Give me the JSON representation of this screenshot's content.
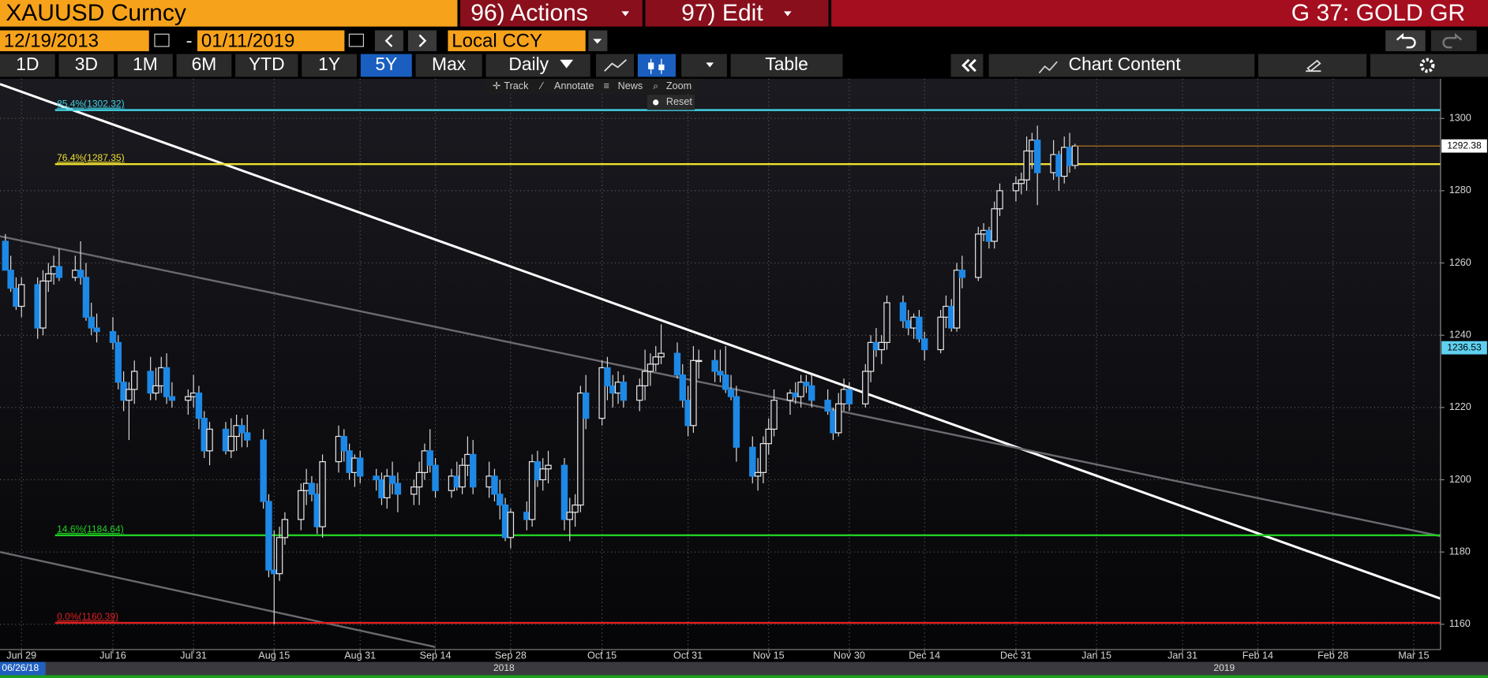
{
  "ui": {
    "security": "XAUUSD Curncy",
    "actions": "96) Actions",
    "edit": "97) Edit",
    "function": "G 37: GOLD GR",
    "start_date": "12/19/2013",
    "end_date": "01/11/2019",
    "currency": "Local CCY",
    "periods": [
      "1D",
      "3D",
      "1M",
      "6M",
      "YTD",
      "1Y",
      "5Y",
      "Max"
    ],
    "frequency": "Daily",
    "table": "Table",
    "chart_content": "Chart Content",
    "tools": [
      "Track",
      "Annotate",
      "News",
      "Zoom"
    ],
    "reset": "Reset",
    "timeline": {
      "start": "06/26/18",
      "years": [
        "2018",
        "2019"
      ]
    }
  },
  "chart_data": {
    "type": "candlestick",
    "up_color": "#e8e8e8",
    "down_color": "#1e88e5",
    "x": [
      "2018-06-26",
      "2018-06-27",
      "2018-06-28",
      "2018-06-29",
      "2018-07-02",
      "2018-07-03",
      "2018-07-04",
      "2018-07-05",
      "2018-07-06",
      "2018-07-09",
      "2018-07-10",
      "2018-07-11",
      "2018-07-12",
      "2018-07-13",
      "2018-07-16",
      "2018-07-17",
      "2018-07-18",
      "2018-07-19",
      "2018-07-20",
      "2018-07-23",
      "2018-07-24",
      "2018-07-25",
      "2018-07-26",
      "2018-07-27",
      "2018-07-30",
      "2018-07-31",
      "2018-08-01",
      "2018-08-02",
      "2018-08-03",
      "2018-08-06",
      "2018-08-07",
      "2018-08-08",
      "2018-08-09",
      "2018-08-10",
      "2018-08-13",
      "2018-08-14",
      "2018-08-15",
      "2018-08-16",
      "2018-08-17",
      "2018-08-20",
      "2018-08-21",
      "2018-08-22",
      "2018-08-23",
      "2018-08-24",
      "2018-08-27",
      "2018-08-28",
      "2018-08-29",
      "2018-08-30",
      "2018-08-31",
      "2018-09-03",
      "2018-09-04",
      "2018-09-05",
      "2018-09-06",
      "2018-09-07",
      "2018-09-10",
      "2018-09-11",
      "2018-09-12",
      "2018-09-13",
      "2018-09-14",
      "2018-09-17",
      "2018-09-18",
      "2018-09-19",
      "2018-09-20",
      "2018-09-21",
      "2018-09-24",
      "2018-09-25",
      "2018-09-26",
      "2018-09-27",
      "2018-09-28",
      "2018-10-01",
      "2018-10-02",
      "2018-10-03",
      "2018-10-04",
      "2018-10-05",
      "2018-10-08",
      "2018-10-09",
      "2018-10-10",
      "2018-10-11",
      "2018-10-12",
      "2018-10-15",
      "2018-10-16",
      "2018-10-17",
      "2018-10-18",
      "2018-10-19",
      "2018-10-22",
      "2018-10-23",
      "2018-10-24",
      "2018-10-25",
      "2018-10-26",
      "2018-10-29",
      "2018-10-30",
      "2018-10-31",
      "2018-11-01",
      "2018-11-02",
      "2018-11-05",
      "2018-11-06",
      "2018-11-07",
      "2018-11-08",
      "2018-11-09",
      "2018-11-12",
      "2018-11-13",
      "2018-11-14",
      "2018-11-15",
      "2018-11-16",
      "2018-11-19",
      "2018-11-20",
      "2018-11-21",
      "2018-11-22",
      "2018-11-23",
      "2018-11-26",
      "2018-11-27",
      "2018-11-28",
      "2018-11-29",
      "2018-11-30",
      "2018-12-03",
      "2018-12-04",
      "2018-12-05",
      "2018-12-06",
      "2018-12-07",
      "2018-12-10",
      "2018-12-11",
      "2018-12-12",
      "2018-12-13",
      "2018-12-14",
      "2018-12-17",
      "2018-12-18",
      "2018-12-19",
      "2018-12-20",
      "2018-12-21",
      "2018-12-24",
      "2018-12-25",
      "2018-12-26",
      "2018-12-27",
      "2018-12-28",
      "2018-12-31",
      "2019-01-01",
      "2019-01-02",
      "2019-01-03",
      "2019-01-04",
      "2019-01-07",
      "2019-01-08",
      "2019-01-09",
      "2019-01-10",
      "2019-01-11"
    ],
    "open": [
      1266,
      1258,
      1253,
      1248,
      1254,
      1242,
      1255,
      1257,
      1259,
      1256,
      1258,
      1256,
      1245,
      1242,
      1241,
      1238,
      1227,
      1222,
      1225,
      1230,
      1224,
      1226,
      1231,
      1223,
      1222,
      1223,
      1224,
      1217,
      1208,
      1214,
      1208,
      1212,
      1215,
      1213,
      1211,
      1194,
      1175,
      1174,
      1184,
      1189,
      1197,
      1199,
      1196,
      1187,
      1205,
      1212,
      1208,
      1202,
      1206,
      1201,
      1200,
      1195,
      1201,
      1199,
      1196,
      1198,
      1202,
      1208,
      1204,
      1197,
      1201,
      1198,
      1204,
      1207,
      1198,
      1201,
      1196,
      1193,
      1184,
      1191,
      1189,
      1205,
      1200,
      1203,
      1204,
      1189,
      1191,
      1193,
      1224,
      1217,
      1231,
      1226,
      1224,
      1227,
      1222,
      1226,
      1230,
      1232,
      1234,
      1235,
      1229,
      1222,
      1215,
      1233,
      1233,
      1230,
      1229,
      1225,
      1223,
      1209,
      1201,
      1202,
      1210,
      1214,
      1222,
      1224,
      1223,
      1227,
      1226,
      1222,
      1219,
      1213,
      1221,
      1225,
      1221,
      1230,
      1238,
      1236,
      1238,
      1249,
      1244,
      1242,
      1245,
      1239,
      1236,
      1245,
      1248,
      1242,
      1258,
      1256,
      1268,
      1269,
      1266,
      1275,
      1280,
      1282,
      1283,
      1291,
      1294,
      1285,
      1290,
      1284,
      1292,
      1287
    ],
    "high": [
      1268,
      1262,
      1256,
      1256,
      1256,
      1258,
      1260,
      1262,
      1264,
      1262,
      1266,
      1260,
      1249,
      1246,
      1245,
      1240,
      1230,
      1227,
      1233,
      1234,
      1231,
      1234,
      1235,
      1227,
      1225,
      1229,
      1226,
      1219,
      1216,
      1216,
      1217,
      1218,
      1217,
      1218,
      1214,
      1196,
      1186,
      1187,
      1191,
      1199,
      1203,
      1201,
      1199,
      1207,
      1215,
      1214,
      1210,
      1207,
      1208,
      1203,
      1202,
      1203,
      1205,
      1202,
      1200,
      1205,
      1210,
      1214,
      1206,
      1203,
      1205,
      1206,
      1212,
      1211,
      1205,
      1203,
      1200,
      1195,
      1192,
      1194,
      1207,
      1208,
      1206,
      1208,
      1206,
      1195,
      1196,
      1226,
      1229,
      1233,
      1234,
      1229,
      1230,
      1229,
      1228,
      1236,
      1235,
      1237,
      1243,
      1238,
      1232,
      1226,
      1237,
      1236,
      1236,
      1236,
      1237,
      1229,
      1226,
      1212,
      1206,
      1212,
      1217,
      1225,
      1225,
      1227,
      1229,
      1229,
      1229,
      1225,
      1220,
      1224,
      1228,
      1227,
      1232,
      1240,
      1242,
      1240,
      1251,
      1251,
      1247,
      1246,
      1247,
      1241,
      1247,
      1251,
      1250,
      1260,
      1262,
      1270,
      1271,
      1270,
      1277,
      1282,
      1284,
      1285,
      1295,
      1296,
      1298,
      1294,
      1291,
      1295,
      1296,
      1293
    ],
    "low": [
      1258,
      1252,
      1247,
      1245,
      1239,
      1240,
      1252,
      1254,
      1255,
      1255,
      1254,
      1244,
      1240,
      1238,
      1236,
      1225,
      1219,
      1211,
      1221,
      1222,
      1222,
      1224,
      1221,
      1220,
      1218,
      1220,
      1214,
      1206,
      1204,
      1207,
      1206,
      1208,
      1209,
      1209,
      1192,
      1173,
      1160,
      1172,
      1182,
      1186,
      1193,
      1194,
      1185,
      1184,
      1202,
      1205,
      1200,
      1198,
      1199,
      1197,
      1193,
      1192,
      1196,
      1191,
      1193,
      1193,
      1200,
      1202,
      1195,
      1195,
      1197,
      1196,
      1201,
      1196,
      1195,
      1194,
      1189,
      1183,
      1181,
      1186,
      1187,
      1198,
      1197,
      1199,
      1186,
      1183,
      1187,
      1191,
      1214,
      1215,
      1222,
      1220,
      1221,
      1220,
      1219,
      1222,
      1226,
      1230,
      1232,
      1228,
      1220,
      1212,
      1213,
      1228,
      1227,
      1227,
      1224,
      1222,
      1205,
      1199,
      1197,
      1199,
      1207,
      1212,
      1218,
      1221,
      1220,
      1224,
      1220,
      1218,
      1211,
      1212,
      1219,
      1219,
      1220,
      1227,
      1234,
      1232,
      1236,
      1242,
      1240,
      1239,
      1238,
      1233,
      1235,
      1242,
      1241,
      1241,
      1253,
      1255,
      1266,
      1264,
      1264,
      1273,
      1277,
      1279,
      1280,
      1286,
      1276,
      1283,
      1280,
      1282,
      1285,
      1286
    ],
    "close": [
      1258,
      1253,
      1248,
      1254,
      1242,
      1255,
      1257,
      1259,
      1256,
      1258,
      1256,
      1245,
      1242,
      1241,
      1238,
      1227,
      1222,
      1225,
      1230,
      1224,
      1226,
      1231,
      1223,
      1222,
      1223,
      1224,
      1217,
      1208,
      1214,
      1208,
      1212,
      1215,
      1213,
      1211,
      1194,
      1175,
      1174,
      1184,
      1189,
      1197,
      1199,
      1196,
      1187,
      1205,
      1212,
      1208,
      1202,
      1206,
      1201,
      1200,
      1195,
      1201,
      1199,
      1196,
      1198,
      1202,
      1208,
      1204,
      1197,
      1201,
      1198,
      1204,
      1207,
      1198,
      1201,
      1196,
      1193,
      1184,
      1191,
      1189,
      1205,
      1200,
      1203,
      1204,
      1189,
      1191,
      1193,
      1224,
      1217,
      1231,
      1226,
      1224,
      1227,
      1222,
      1226,
      1230,
      1232,
      1234,
      1235,
      1229,
      1222,
      1215,
      1233,
      1233,
      1230,
      1229,
      1225,
      1223,
      1209,
      1201,
      1202,
      1210,
      1214,
      1222,
      1224,
      1223,
      1227,
      1226,
      1222,
      1219,
      1213,
      1221,
      1225,
      1221,
      1230,
      1238,
      1236,
      1238,
      1249,
      1244,
      1242,
      1245,
      1239,
      1236,
      1245,
      1248,
      1242,
      1258,
      1256,
      1268,
      1269,
      1266,
      1275,
      1280,
      1282,
      1283,
      1291,
      1294,
      1285,
      1290,
      1284,
      1292,
      1287,
      1292.38
    ],
    "xlim": [
      "2018-06-25",
      "2019-03-20"
    ],
    "xticks": [
      {
        "value": "2018-06-29",
        "label": "Jun 29"
      },
      {
        "value": "2018-07-16",
        "label": "Jul 16"
      },
      {
        "value": "2018-07-31",
        "label": "Jul 31"
      },
      {
        "value": "2018-08-15",
        "label": "Aug 15"
      },
      {
        "value": "2018-08-31",
        "label": "Aug 31"
      },
      {
        "value": "2018-09-14",
        "label": "Sep 14"
      },
      {
        "value": "2018-09-28",
        "label": "Sep 28"
      },
      {
        "value": "2018-10-15",
        "label": "Oct 15"
      },
      {
        "value": "2018-10-31",
        "label": "Oct 31"
      },
      {
        "value": "2018-11-15",
        "label": "Nov 15"
      },
      {
        "value": "2018-11-30",
        "label": "Nov 30"
      },
      {
        "value": "2018-12-14",
        "label": "Dec 14"
      },
      {
        "value": "2018-12-31",
        "label": "Dec 31"
      },
      {
        "value": "2019-01-15",
        "label": "Jan 15"
      },
      {
        "value": "2019-01-31",
        "label": "Jan 31"
      },
      {
        "value": "2019-02-14",
        "label": "Feb 14"
      },
      {
        "value": "2019-02-28",
        "label": "Feb 28"
      },
      {
        "value": "2019-03-15",
        "label": "Mar 15"
      }
    ],
    "ylim": [
      1153,
      1311
    ],
    "yticks": [
      1160,
      1180,
      1200,
      1220,
      1240,
      1260,
      1280,
      1300
    ],
    "grid": true,
    "fib_levels": [
      {
        "label": "85.4%(1302.32)",
        "value": 1302.32,
        "color": "#3fd0e0"
      },
      {
        "label": "76.4%(1287.35)",
        "value": 1287.35,
        "color": "#f0e030"
      },
      {
        "label": "14.6%(1184.64)",
        "value": 1184.64,
        "color": "#22d022"
      },
      {
        "label": "0.0%(1160.39)",
        "value": 1160.39,
        "color": "#e02020"
      }
    ],
    "trend_lines": [
      {
        "x": [
          "2018-06-25",
          "2019-03-20"
        ],
        "y": [
          1309.5,
          1167.1
        ],
        "color": "#ffffff"
      },
      {
        "x": [
          "2018-06-25",
          "2019-03-20"
        ],
        "y": [
          1267.4,
          1184.4
        ],
        "color": "#6a6a70"
      },
      {
        "x": [
          "2018-06-25",
          "2018-09-14"
        ],
        "y": [
          1180,
          1153.7
        ],
        "color": "#6a6a70"
      }
    ],
    "price_labels": [
      {
        "value": 1292.38,
        "color": "#ffffff",
        "line_color": "#c07a20"
      },
      {
        "value": 1236.53,
        "color": "#5fd0f0"
      }
    ]
  }
}
